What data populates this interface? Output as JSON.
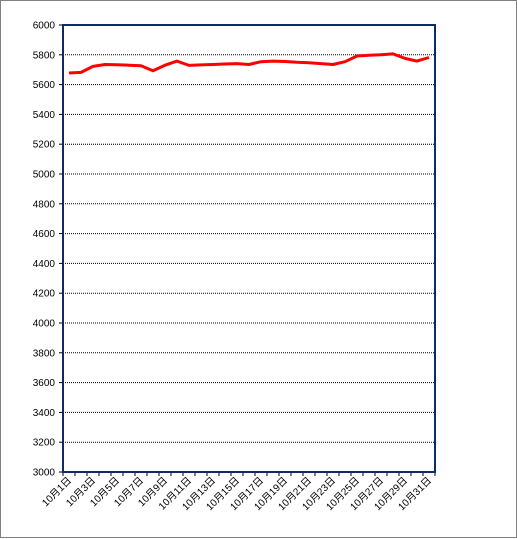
{
  "chart_data": {
    "type": "line",
    "title": "",
    "xlabel": "",
    "ylabel": "",
    "ylim": [
      3000,
      6000
    ],
    "ytick_step": 200,
    "grid": true,
    "legend": "none",
    "colors": {
      "line": "#ff0000",
      "grid": "#000000",
      "plot_border": "#0d2a6b"
    },
    "x": [
      "10月1日",
      "10月2日",
      "10月3日",
      "10月4日",
      "10月5日",
      "10月6日",
      "10月7日",
      "10月8日",
      "10月9日",
      "10月10日",
      "10月11日",
      "10月12日",
      "10月13日",
      "10月14日",
      "10月15日",
      "10月16日",
      "10月17日",
      "10月18日",
      "10月19日",
      "10月20日",
      "10月21日",
      "10月22日",
      "10月23日",
      "10月24日",
      "10月25日",
      "10月26日",
      "10月27日",
      "10月28日",
      "10月29日",
      "10月30日",
      "10月31日"
    ],
    "x_tick_labels": [
      "10月1日",
      "10月3日",
      "10月5日",
      "10月7日",
      "10月9日",
      "10月11日",
      "10月13日",
      "10月15日",
      "10月17日",
      "10月19日",
      "10月21日",
      "10月23日",
      "10月25日",
      "10月27日",
      "10月29日",
      "10月31日"
    ],
    "series": [
      {
        "values": [
          5678,
          5682,
          5722,
          5735,
          5733,
          5730,
          5727,
          5693,
          5730,
          5758,
          5729,
          5732,
          5735,
          5738,
          5741,
          5735,
          5754,
          5758,
          5755,
          5750,
          5746,
          5741,
          5735,
          5754,
          5792,
          5797,
          5801,
          5806,
          5776,
          5758,
          5782
        ]
      }
    ]
  }
}
